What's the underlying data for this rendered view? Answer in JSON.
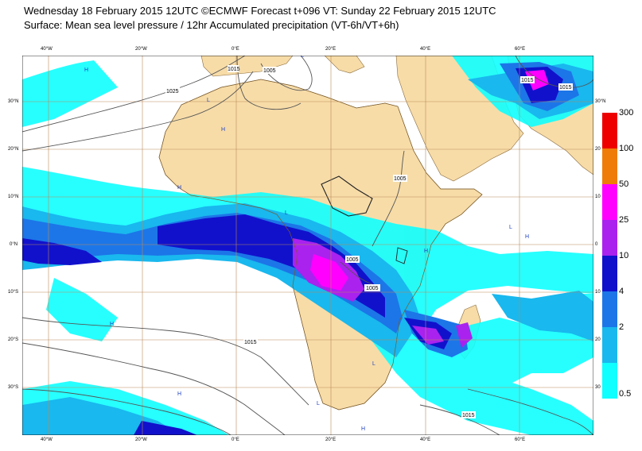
{
  "header": {
    "line1": "Wednesday 18 February 2015 12UTC ©ECMWF Forecast t+096 VT: Sunday 22 February 2015 12UTC",
    "line2": "Surface: Mean sea level pressure / 12hr Accumulated precipitation (VT-6h/VT+6h)"
  },
  "map": {
    "lon_labels": [
      "40°W",
      "20°W",
      "0°E",
      "20°E",
      "40°E",
      "60°E"
    ],
    "lat_labels": [
      "30°N",
      "20°N",
      "10°N",
      "0°N",
      "10°S",
      "20°S",
      "30°S"
    ],
    "lat_labels_right": [
      "30°N",
      "20",
      "10",
      "0",
      "10",
      "20",
      "30"
    ],
    "isobar_labels": [
      "1025",
      "1015",
      "1005",
      "1015",
      "1015",
      "1005",
      "1005",
      "1005",
      "1015",
      "1015"
    ],
    "pressure_markers": [
      "H",
      "L"
    ],
    "colors": {
      "land": "#f7dca8",
      "sea": "#ffffff",
      "grid": "#b98a5a",
      "isobar": "#555555"
    }
  },
  "legend": {
    "labels": [
      "300",
      "100",
      "50",
      "25",
      "10",
      "4",
      "2",
      "0.5"
    ],
    "colors": [
      "#ee0000",
      "#f07c08",
      "#ff00ff",
      "#aa22ee",
      "#1111cc",
      "#1c76e8",
      "#19b8ee",
      "#10ffff"
    ]
  }
}
